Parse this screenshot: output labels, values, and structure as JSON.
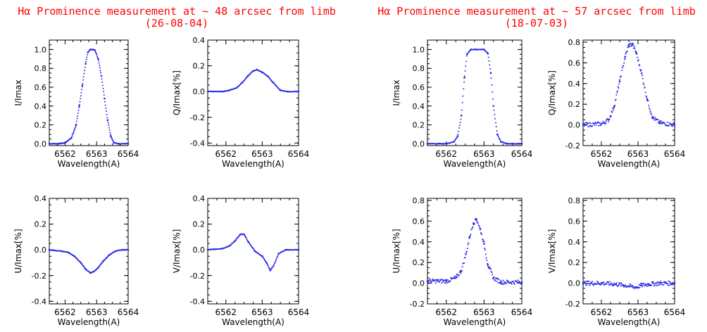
{
  "titles": {
    "left_line1": "Hα Prominence measurement at ~ 48 arcsec from limb",
    "left_line2": "(26-08-04)",
    "right_line1": "Hα Prominence measurement at ~ 57 arcsec from limb",
    "right_line2": "(18-07-03)"
  },
  "colors": {
    "data": "#2b2be6",
    "title": "#ff0000",
    "axis": "#000000"
  },
  "chart_data": [
    {
      "id": "left-I",
      "type": "scatter",
      "xlabel": "Wavelength(A)",
      "ylabel": "I/Imax",
      "xlim": [
        6561.5,
        6564
      ],
      "ylim": [
        -0.02,
        1.1
      ],
      "xticks": [
        6562,
        6563,
        6564
      ],
      "yticks": [
        0.0,
        0.2,
        0.4,
        0.6,
        0.8,
        1.0
      ],
      "ytick_labels": [
        "0.0",
        "0.2",
        "0.4",
        "0.6",
        "0.8",
        "1.0"
      ],
      "x": [
        6561.5,
        6561.8,
        6562.0,
        6562.2,
        6562.35,
        6562.45,
        6562.55,
        6562.65,
        6562.72,
        6562.8,
        6562.88,
        6562.95,
        6563.05,
        6563.15,
        6563.25,
        6563.35,
        6563.45,
        6563.55,
        6563.7,
        6564.0
      ],
      "y": [
        0.0,
        0.0,
        0.01,
        0.06,
        0.2,
        0.4,
        0.62,
        0.85,
        0.97,
        1.0,
        1.0,
        0.99,
        0.9,
        0.72,
        0.48,
        0.25,
        0.08,
        0.01,
        0.0,
        0.0
      ]
    },
    {
      "id": "left-Q",
      "type": "scatter",
      "xlabel": "Wavelength(A)",
      "ylabel": "Q/Imax[%]",
      "xlim": [
        6561.5,
        6564
      ],
      "ylim": [
        -0.42,
        0.4
      ],
      "xticks": [
        6562,
        6563,
        6564
      ],
      "yticks": [
        -0.4,
        -0.2,
        0.0,
        0.2,
        0.4
      ],
      "ytick_labels": [
        "-0.4",
        "-0.2",
        "0.0",
        "0.2",
        "0.4"
      ],
      "x": [
        6561.5,
        6561.9,
        6562.1,
        6562.3,
        6562.45,
        6562.6,
        6562.75,
        6562.85,
        6563.0,
        6563.15,
        6563.3,
        6563.5,
        6563.7,
        6564.0
      ],
      "y": [
        0.0,
        0.0,
        0.01,
        0.03,
        0.07,
        0.12,
        0.16,
        0.17,
        0.15,
        0.12,
        0.07,
        0.01,
        0.0,
        0.0
      ]
    },
    {
      "id": "left-U",
      "type": "scatter",
      "xlabel": "Wavelength(A)",
      "ylabel": "U/Imax[%]",
      "xlim": [
        6561.5,
        6564
      ],
      "ylim": [
        -0.42,
        0.4
      ],
      "xticks": [
        6562,
        6563,
        6564
      ],
      "yticks": [
        -0.4,
        -0.2,
        0.0,
        0.2,
        0.4
      ],
      "ytick_labels": [
        "-0.4",
        "-0.2",
        "0.0",
        "0.2",
        "0.4"
      ],
      "x": [
        6561.5,
        6561.9,
        6562.1,
        6562.3,
        6562.5,
        6562.65,
        6562.8,
        6562.9,
        6563.05,
        6563.2,
        6563.4,
        6563.6,
        6563.8,
        6564.0
      ],
      "y": [
        0.0,
        -0.01,
        -0.02,
        -0.05,
        -0.1,
        -0.15,
        -0.18,
        -0.17,
        -0.14,
        -0.09,
        -0.04,
        -0.01,
        0.0,
        0.0
      ]
    },
    {
      "id": "left-V",
      "type": "scatter",
      "xlabel": "Wavelength(A)",
      "ylabel": "V/Imax[%]",
      "xlim": [
        6561.5,
        6564
      ],
      "ylim": [
        -0.42,
        0.4
      ],
      "xticks": [
        6562,
        6563,
        6564
      ],
      "yticks": [
        -0.4,
        -0.2,
        0.0,
        0.2,
        0.4
      ],
      "ytick_labels": [
        "-0.4",
        "-0.2",
        "0.0",
        "0.2",
        "0.4"
      ],
      "x": [
        6561.5,
        6561.9,
        6562.1,
        6562.25,
        6562.4,
        6562.5,
        6562.62,
        6562.8,
        6563.0,
        6563.12,
        6563.22,
        6563.32,
        6563.45,
        6563.65,
        6564.0
      ],
      "y": [
        0.0,
        0.01,
        0.03,
        0.07,
        0.12,
        0.12,
        0.06,
        -0.01,
        -0.05,
        -0.1,
        -0.16,
        -0.12,
        -0.03,
        0.0,
        0.0
      ]
    },
    {
      "id": "right-I",
      "type": "scatter",
      "xlabel": "Wavelength(A)",
      "ylabel": "I/Imax",
      "xlim": [
        6561.5,
        6564
      ],
      "ylim": [
        -0.02,
        1.1
      ],
      "xticks": [
        6562,
        6563,
        6564
      ],
      "yticks": [
        0.0,
        0.2,
        0.4,
        0.6,
        0.8,
        1.0
      ],
      "ytick_labels": [
        "0.0",
        "0.2",
        "0.4",
        "0.6",
        "0.8",
        "1.0"
      ],
      "x": [
        6561.5,
        6562.0,
        6562.2,
        6562.3,
        6562.4,
        6562.48,
        6562.55,
        6562.65,
        6562.8,
        6563.0,
        6563.1,
        6563.18,
        6563.25,
        6563.35,
        6563.45,
        6563.6,
        6564.0
      ],
      "y": [
        0.0,
        0.0,
        0.02,
        0.08,
        0.3,
        0.7,
        0.95,
        1.0,
        1.0,
        1.0,
        0.96,
        0.75,
        0.4,
        0.1,
        0.02,
        0.0,
        0.0
      ]
    },
    {
      "id": "right-Q",
      "type": "scatter",
      "xlabel": "Wavelength(A)",
      "ylabel": "Q/Imax[%]",
      "xlim": [
        6561.5,
        6564
      ],
      "ylim": [
        -0.2,
        0.82
      ],
      "xticks": [
        6562,
        6563,
        6564
      ],
      "yticks": [
        -0.2,
        0.0,
        0.2,
        0.4,
        0.6,
        0.8
      ],
      "ytick_labels": [
        "-0.2",
        "0.0",
        "0.2",
        "0.4",
        "0.6",
        "0.8"
      ],
      "x": [
        6561.5,
        6562.0,
        6562.2,
        6562.35,
        6562.5,
        6562.65,
        6562.75,
        6562.85,
        6562.95,
        6563.1,
        6563.25,
        6563.4,
        6563.6,
        6564.0
      ],
      "y": [
        0.0,
        0.01,
        0.05,
        0.18,
        0.42,
        0.66,
        0.77,
        0.78,
        0.7,
        0.5,
        0.25,
        0.07,
        0.02,
        0.0
      ]
    },
    {
      "id": "right-U",
      "type": "scatter",
      "xlabel": "Wavelength(A)",
      "ylabel": "U/Imax[%]",
      "xlim": [
        6561.5,
        6564
      ],
      "ylim": [
        -0.2,
        0.82
      ],
      "xticks": [
        6562,
        6563,
        6564
      ],
      "yticks": [
        -0.2,
        0.0,
        0.2,
        0.4,
        0.6,
        0.8
      ],
      "ytick_labels": [
        "-0.2",
        "0.0",
        "0.2",
        "0.4",
        "0.6",
        "0.8"
      ],
      "x": [
        6561.5,
        6562.0,
        6562.25,
        6562.4,
        6562.52,
        6562.62,
        6562.72,
        6562.8,
        6562.9,
        6563.0,
        6563.1,
        6563.25,
        6563.45,
        6564.0
      ],
      "y": [
        0.02,
        0.02,
        0.05,
        0.12,
        0.28,
        0.45,
        0.58,
        0.62,
        0.52,
        0.38,
        0.18,
        0.05,
        0.01,
        0.01
      ]
    },
    {
      "id": "right-V",
      "type": "scatter",
      "xlabel": "Wavelength(A)",
      "ylabel": "V/Imax[%]",
      "xlim": [
        6561.5,
        6564
      ],
      "ylim": [
        -0.2,
        0.82
      ],
      "xticks": [
        6562,
        6563,
        6564
      ],
      "yticks": [
        -0.2,
        0.0,
        0.2,
        0.4,
        0.6,
        0.8
      ],
      "ytick_labels": [
        "-0.2",
        "0.0",
        "0.2",
        "0.4",
        "0.6",
        "0.8"
      ],
      "x": [
        6561.5,
        6562.0,
        6562.4,
        6562.6,
        6562.8,
        6562.95,
        6563.1,
        6563.3,
        6563.6,
        6564.0
      ],
      "y": [
        0.0,
        0.0,
        -0.01,
        -0.02,
        -0.03,
        -0.04,
        -0.02,
        -0.01,
        0.0,
        0.0
      ]
    }
  ]
}
